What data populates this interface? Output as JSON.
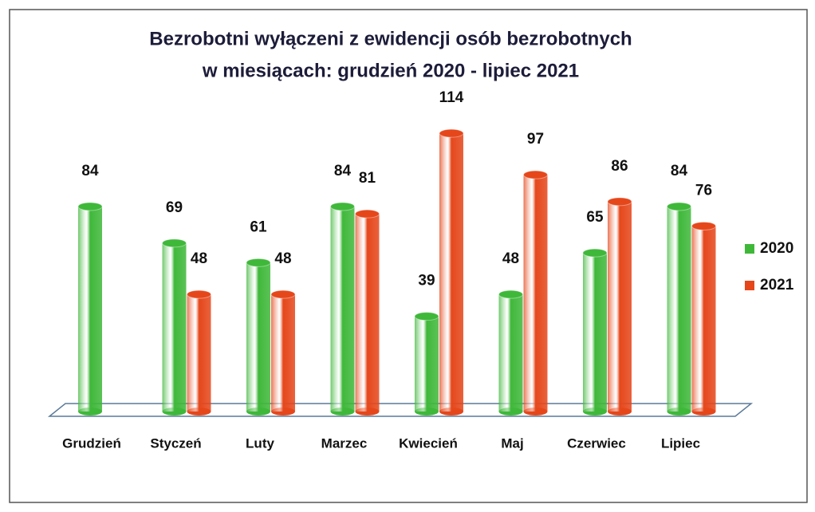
{
  "chart_data": {
    "type": "bar",
    "title": [
      "Bezrobotni wyłączeni z ewidencji osób bezrobotnych",
      "w miesiącach: grudzień 2020 - lipiec 2021"
    ],
    "categories": [
      "Grudzień",
      "Styczeń",
      "Luty",
      "Marzec",
      "Kwiecień",
      "Maj",
      "Czerwiec",
      "Lipiec"
    ],
    "series": [
      {
        "name": "2020",
        "color": "#3fb83a",
        "values": [
          84,
          69,
          61,
          84,
          39,
          48,
          65,
          84
        ]
      },
      {
        "name": "2021",
        "color": "#e5471b",
        "values": [
          null,
          48,
          48,
          81,
          114,
          97,
          86,
          76
        ]
      }
    ],
    "legend": "right"
  }
}
